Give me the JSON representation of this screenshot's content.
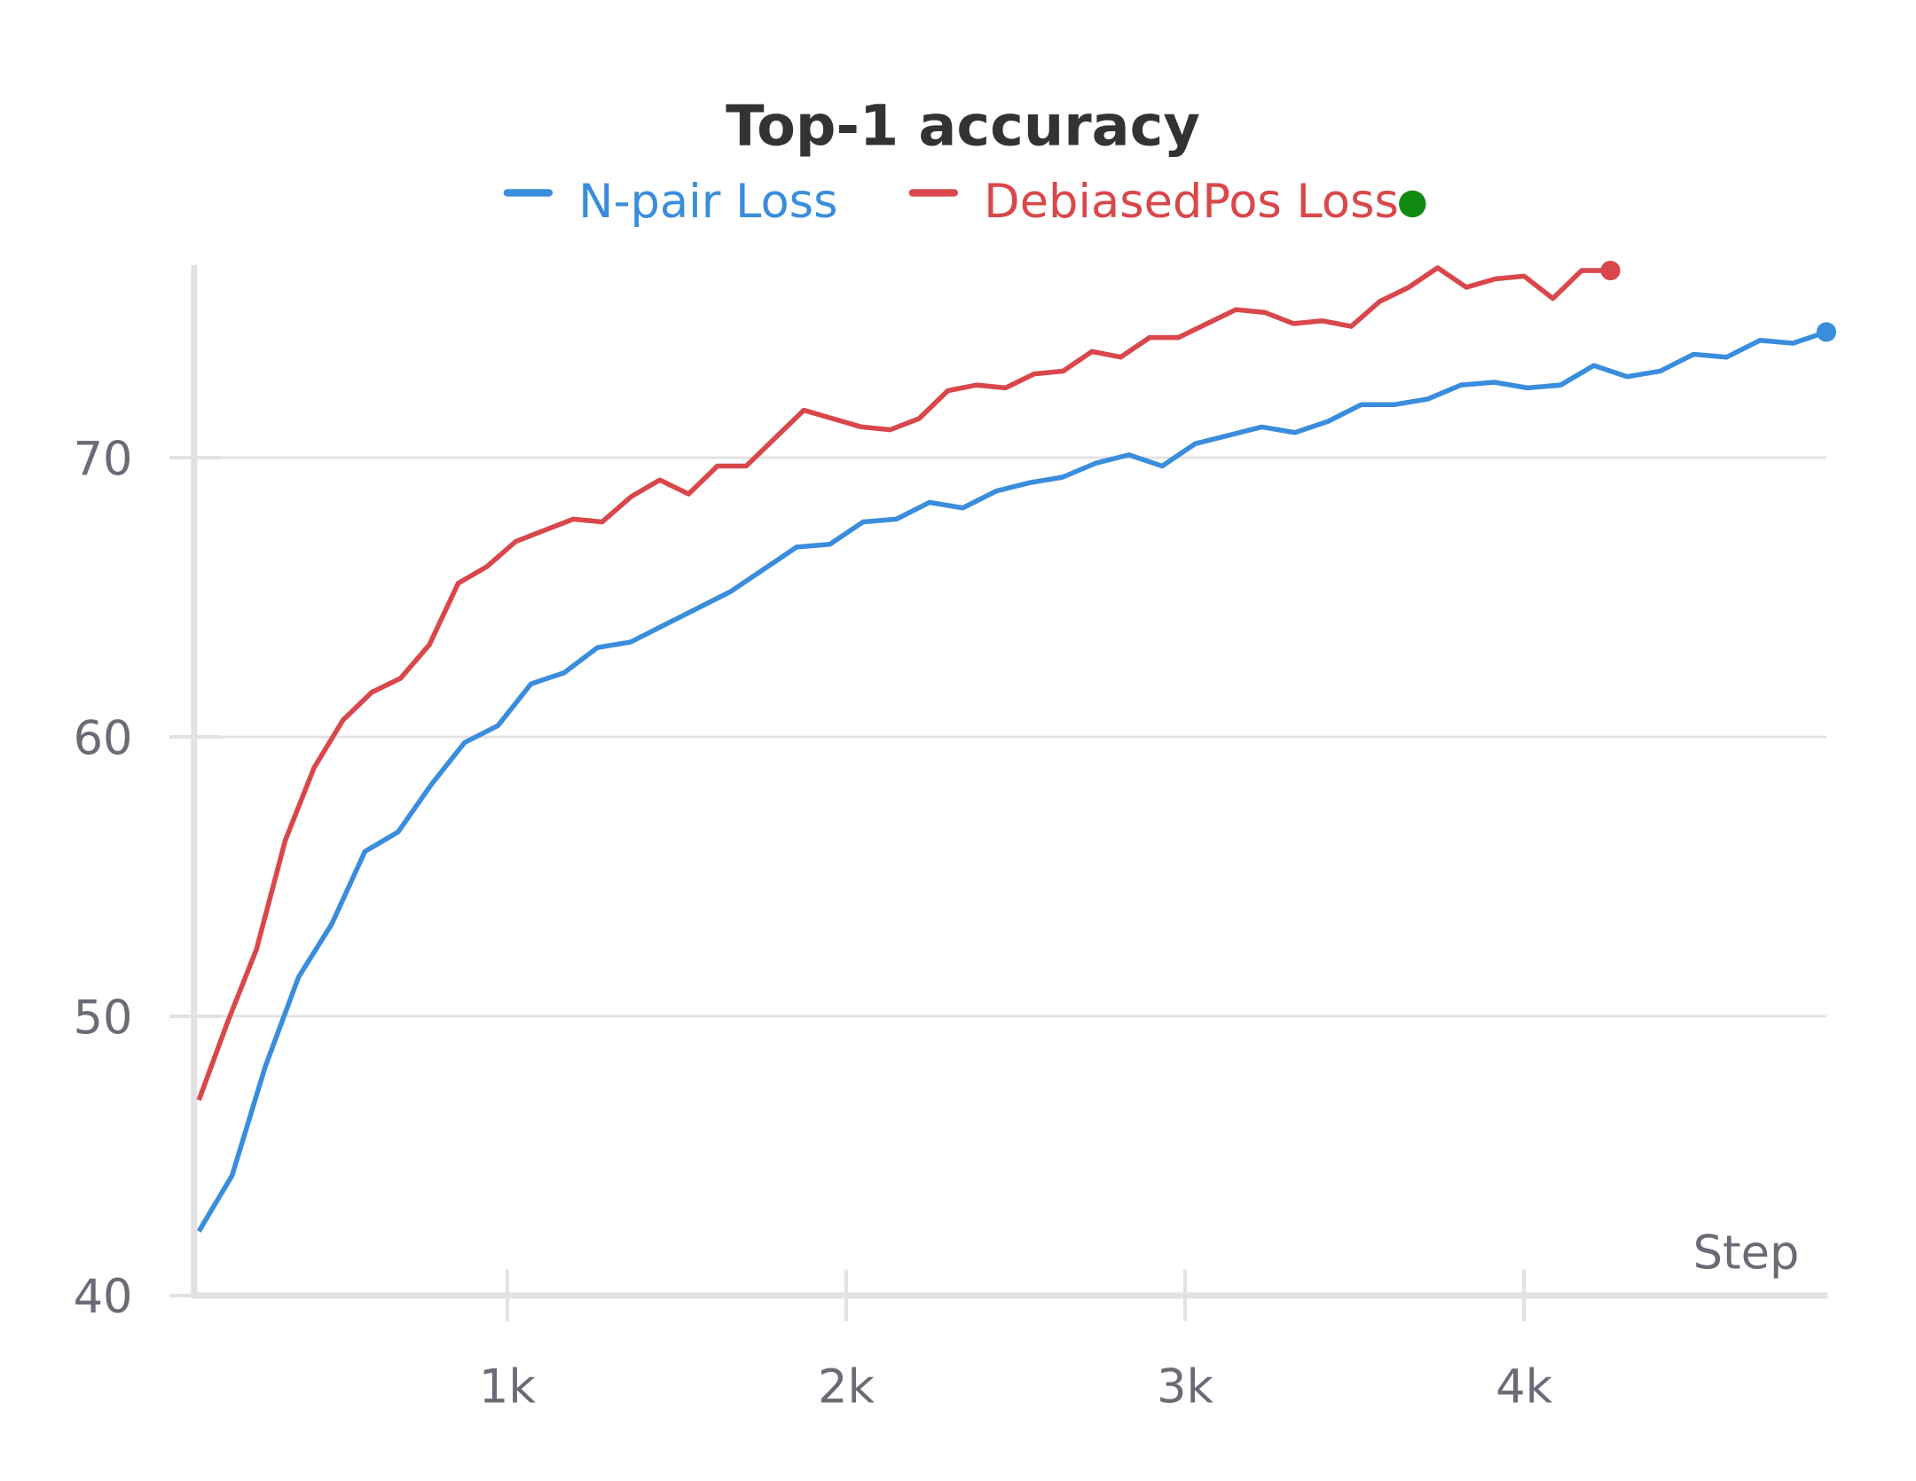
{
  "chart_data": {
    "type": "line",
    "title": "Top-1 accuracy",
    "x_label": "Step",
    "xlim": [
      83,
      4892
    ],
    "ylim": [
      40,
      76.8
    ],
    "xticks": [
      {
        "value": 1000,
        "label": "1k"
      },
      {
        "value": 2000,
        "label": "2k"
      },
      {
        "value": 3000,
        "label": "3k"
      },
      {
        "value": 4000,
        "label": "4k"
      }
    ],
    "yticks": [
      40,
      50,
      60,
      70
    ],
    "grid": true,
    "series": [
      {
        "name": "N-pair Loss",
        "color": "#3a8ddc",
        "x": [
          90,
          188,
          286,
          384,
          482,
          580,
          678,
          776,
          874,
          972,
          1070,
          1168,
          1266,
          1364,
          1462,
          1560,
          1658,
          1756,
          1854,
          1952,
          2050,
          2148,
          2246,
          2344,
          2442,
          2540,
          2638,
          2736,
          2834,
          2932,
          3030,
          3128,
          3226,
          3324,
          3422,
          3520,
          3618,
          3716,
          3814,
          3912,
          4010,
          4108,
          4206,
          4304,
          4402,
          4500,
          4598,
          4696,
          4794,
          4892
        ],
        "values": [
          42.3,
          44.3,
          48.2,
          51.4,
          53.3,
          55.9,
          56.6,
          58.3,
          59.8,
          60.4,
          61.9,
          62.3,
          63.2,
          63.4,
          64.0,
          64.6,
          65.2,
          66.0,
          66.8,
          66.9,
          67.7,
          67.8,
          68.4,
          68.2,
          68.8,
          69.1,
          69.3,
          69.8,
          70.1,
          69.7,
          70.5,
          70.8,
          71.1,
          70.9,
          71.3,
          71.9,
          71.9,
          72.1,
          72.6,
          72.7,
          72.5,
          72.6,
          73.3,
          72.9,
          73.1,
          73.7,
          73.6,
          74.2,
          74.1,
          74.5
        ]
      },
      {
        "name": "DebiasedPos Loss",
        "color": "#d9474b",
        "x": [
          90,
          175,
          260,
          345,
          430,
          515,
          600,
          685,
          770,
          855,
          940,
          1025,
          1110,
          1195,
          1280,
          1365,
          1450,
          1535,
          1620,
          1705,
          1790,
          1875,
          1960,
          2045,
          2130,
          2215,
          2300,
          2385,
          2470,
          2555,
          2640,
          2725,
          2810,
          2895,
          2980,
          3065,
          3150,
          3235,
          3320,
          3405,
          3490,
          3575,
          3660,
          3745,
          3830,
          3915,
          4000,
          4085,
          4170,
          4255
        ],
        "values": [
          47.0,
          49.8,
          52.4,
          56.3,
          58.9,
          60.6,
          61.6,
          62.1,
          63.3,
          65.5,
          66.1,
          67.0,
          67.4,
          67.8,
          67.7,
          68.6,
          69.2,
          68.7,
          69.7,
          69.7,
          70.7,
          71.7,
          71.4,
          71.1,
          71.0,
          71.4,
          72.4,
          72.6,
          72.5,
          73.0,
          73.1,
          73.8,
          73.6,
          74.3,
          74.3,
          74.8,
          75.3,
          75.2,
          74.8,
          74.9,
          74.7,
          75.6,
          76.1,
          76.8,
          76.1,
          76.4,
          76.5,
          75.7,
          76.7,
          76.7
        ]
      }
    ]
  }
}
